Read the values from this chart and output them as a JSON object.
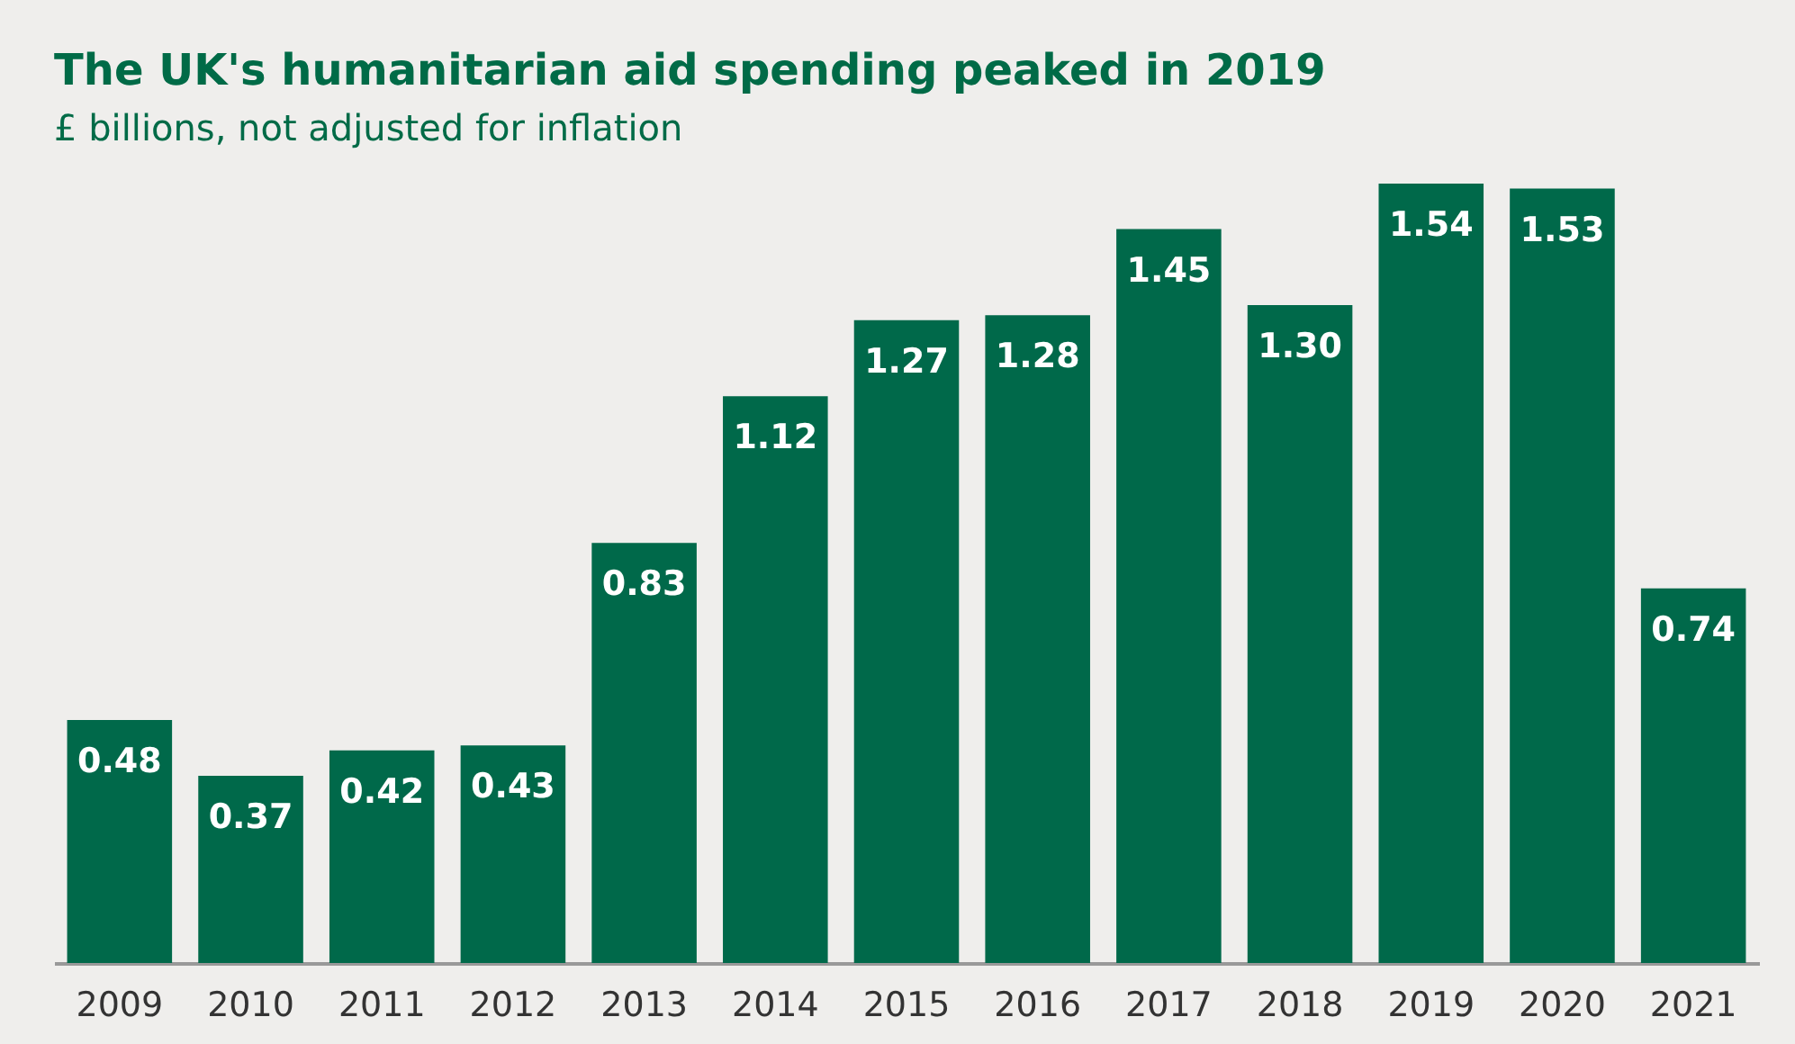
{
  "chart_data": {
    "type": "bar",
    "title": "The UK's humanitarian aid spending peaked in 2019",
    "subtitle": "£ billions, not adjusted for inflation",
    "categories": [
      "2009",
      "2010",
      "2011",
      "2012",
      "2013",
      "2014",
      "2015",
      "2016",
      "2017",
      "2018",
      "2019",
      "2020",
      "2021"
    ],
    "values": [
      0.48,
      0.37,
      0.42,
      0.43,
      0.83,
      1.12,
      1.27,
      1.28,
      1.45,
      1.3,
      1.54,
      1.53,
      0.74
    ],
    "value_labels": [
      "0.48",
      "0.37",
      "0.42",
      "0.43",
      "0.83",
      "1.12",
      "1.27",
      "1.28",
      "1.45",
      "1.30",
      "1.54",
      "1.53",
      "0.74"
    ],
    "color": "#00694a",
    "grid": false,
    "tick_labels": "x"
  }
}
